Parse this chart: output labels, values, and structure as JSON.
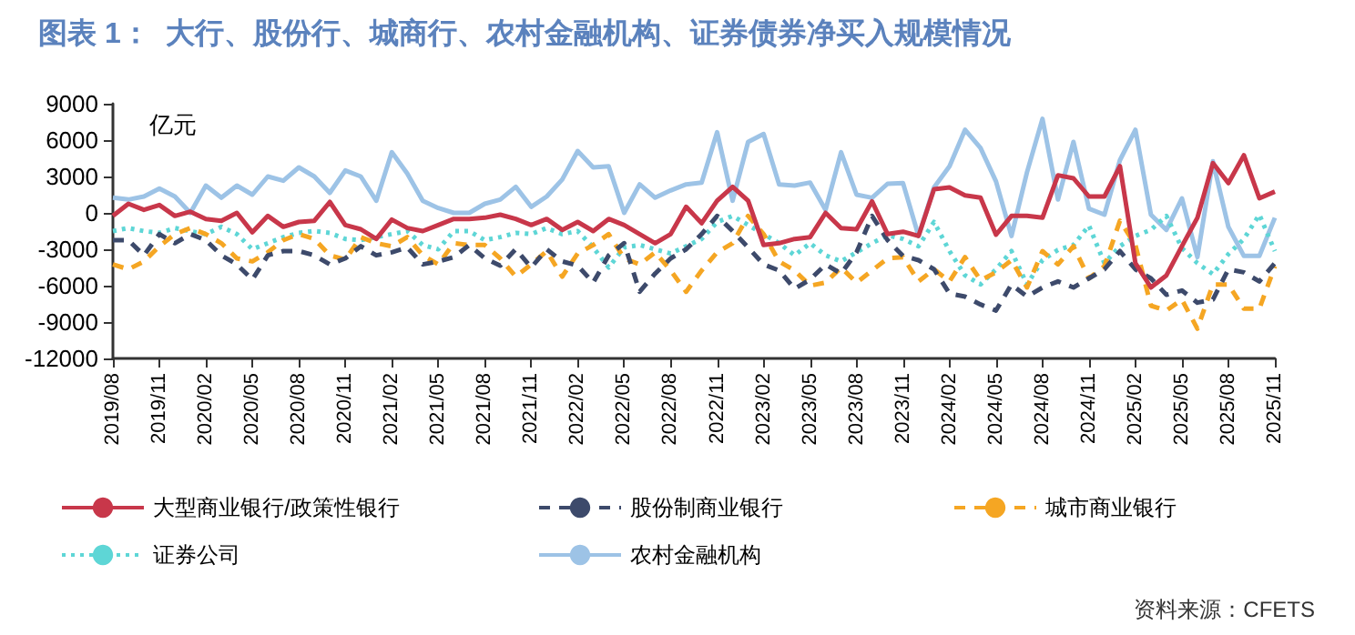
{
  "chart_data": {
    "type": "line",
    "title": "图表 1：  大行、股份行、城商行、农村金融机构、证券债券净买入规模情况",
    "ylabel": "亿元",
    "categories": [
      "2019/08",
      null,
      null,
      "2019/11",
      null,
      null,
      "2020/02",
      null,
      null,
      "2020/05",
      null,
      null,
      "2020/08",
      null,
      null,
      "2020/11",
      null,
      null,
      "2021/02",
      null,
      null,
      "2021/05",
      null,
      null,
      "2021/08",
      null,
      null,
      "2021/11",
      null,
      null,
      "2022/02",
      null,
      null,
      "2022/05",
      null,
      null,
      "2022/08",
      null,
      null,
      "2022/11",
      null,
      null,
      "2023/02",
      null,
      null,
      "2023/05",
      null,
      null,
      "2023/08",
      null,
      null,
      "2023/11",
      null,
      null,
      "2024/02",
      null,
      null,
      "2024/05",
      null,
      null,
      "2024/08",
      null,
      null,
      "2024/11",
      null,
      null,
      "2025/02",
      null,
      null,
      "2025/05",
      null,
      null,
      "2025/08",
      null,
      null,
      "2025/11"
    ],
    "series": [
      {
        "name": "大型商业银行/政策性银行",
        "color": "#c8374a",
        "line_style": "solid",
        "values": [
          -250,
          750,
          250,
          650,
          -250,
          100,
          -500,
          -650,
          0,
          -1600,
          -250,
          -1150,
          -750,
          -650,
          900,
          -1000,
          -1350,
          -2150,
          -550,
          -1250,
          -1500,
          -1000,
          -500,
          -500,
          -400,
          -150,
          -500,
          -1000,
          -500,
          -1400,
          -750,
          -1500,
          -500,
          -1000,
          -1750,
          -2500,
          -1750,
          500,
          -850,
          1000,
          2150,
          1000,
          -2650,
          -2500,
          -2150,
          -2000,
          0,
          -1250,
          -1350,
          950,
          -1750,
          -1550,
          -1900,
          1950,
          2100,
          1450,
          1250,
          -1800,
          -250,
          -250,
          -400,
          3100,
          2850,
          1350,
          1350,
          3850,
          -4150,
          -6150,
          -5150,
          -2750,
          -400,
          4100,
          2450,
          4750,
          1200,
          1750
        ]
      },
      {
        "name": "股份制商业银行",
        "color": "#3d4a6b",
        "line_style": "dashed",
        "values": [
          -2250,
          -2250,
          -3500,
          -1750,
          -2500,
          -1750,
          -2250,
          -3500,
          -4250,
          -5500,
          -3500,
          -3150,
          -3150,
          -3500,
          -4250,
          -3750,
          -2750,
          -3500,
          -3250,
          -2850,
          -4250,
          -4000,
          -3650,
          -2650,
          -3750,
          -4350,
          -3000,
          -4500,
          -3000,
          -4000,
          -4350,
          -5750,
          -3500,
          -2500,
          -6500,
          -5000,
          -3750,
          -3000,
          -1750,
          -250,
          -1500,
          -2850,
          -4250,
          -4750,
          -6250,
          -5500,
          -4250,
          -5000,
          -3250,
          -250,
          -2250,
          -3550,
          -3900,
          -4650,
          -6650,
          -6900,
          -7550,
          -8050,
          -5900,
          -6900,
          -6150,
          -5650,
          -6150,
          -5400,
          -4650,
          -3150,
          -4650,
          -5400,
          -6750,
          -6400,
          -7400,
          -7150,
          -4650,
          -4900,
          -5650,
          -4150
        ]
      },
      {
        "name": "城市商业银行",
        "color": "#f5a623",
        "line_style": "dashed",
        "values": [
          -4250,
          -4650,
          -4000,
          -2750,
          -1750,
          -1250,
          -1750,
          -2500,
          -3750,
          -4000,
          -3250,
          -2250,
          -1750,
          -2150,
          -3500,
          -3850,
          -2000,
          -2500,
          -2750,
          -2000,
          -3500,
          -4250,
          -2500,
          -2650,
          -2650,
          -3750,
          -5250,
          -4250,
          -3150,
          -5250,
          -3350,
          -2650,
          -1750,
          -3750,
          -4250,
          -3250,
          -4750,
          -6500,
          -4750,
          -3250,
          -2500,
          -250,
          -1750,
          -4000,
          -4750,
          -6000,
          -5750,
          -4500,
          -5750,
          -4750,
          -3750,
          -3650,
          -5650,
          -4650,
          -5650,
          -3650,
          -5550,
          -4900,
          -3900,
          -6150,
          -3150,
          -4250,
          -2750,
          -5400,
          -4400,
          -650,
          -2650,
          -7650,
          -8050,
          -7150,
          -9550,
          -5900,
          -5900,
          -7900,
          -7900,
          -4400
        ]
      },
      {
        "name": "证券公司",
        "color": "#5ed6d6",
        "line_style": "dotted",
        "values": [
          -1500,
          -1250,
          -1500,
          -1650,
          -1250,
          -1500,
          -1750,
          -1150,
          -1750,
          -3000,
          -2500,
          -2000,
          -1650,
          -1500,
          -1650,
          -2150,
          -2250,
          -2000,
          -1750,
          -1500,
          -2650,
          -3000,
          -1500,
          -1500,
          -2250,
          -2000,
          -1650,
          -1750,
          -1250,
          -1750,
          -1500,
          -2850,
          -4500,
          -2850,
          -2650,
          -3000,
          -3350,
          -2750,
          -2150,
          -750,
          -250,
          -1000,
          -1750,
          -2500,
          -3500,
          -2500,
          -3500,
          -4000,
          -3250,
          -2500,
          -1850,
          -2150,
          -2750,
          -750,
          -3150,
          -5150,
          -5900,
          -4650,
          -3150,
          -5900,
          -3900,
          -3050,
          -2650,
          -1050,
          -4150,
          -2750,
          -1900,
          -1400,
          -250,
          -2900,
          -4150,
          -5050,
          -3400,
          -2150,
          -150,
          -3150
        ]
      },
      {
        "name": "农村金融机构",
        "color": "#9dc3e6",
        "line_style": "solid",
        "values": [
          1250,
          1100,
          1350,
          2000,
          1350,
          0,
          2250,
          1250,
          2250,
          1500,
          3000,
          2650,
          3750,
          3000,
          1650,
          3500,
          3000,
          1000,
          5000,
          3250,
          1000,
          400,
          0,
          0,
          750,
          1100,
          2150,
          500,
          1350,
          2750,
          5100,
          3750,
          3850,
          0,
          2350,
          1250,
          1850,
          2350,
          2500,
          6650,
          1000,
          5850,
          6500,
          2350,
          2250,
          2500,
          250,
          5000,
          1500,
          1250,
          2400,
          2450,
          -1900,
          2100,
          3850,
          6850,
          5350,
          2600,
          -1900,
          3350,
          7750,
          1100,
          5850,
          350,
          -150,
          4350,
          6850,
          -150,
          -1400,
          1200,
          -3650,
          4250,
          -1150,
          -3550,
          -3550,
          -400
        ]
      }
    ],
    "ylim": [
      -12000,
      9000
    ],
    "yticks": [
      -12000,
      -9000,
      -6000,
      -3000,
      0,
      3000,
      6000,
      9000
    ],
    "grid": false,
    "legend": "bottom",
    "marker": "none",
    "annotations": [
      "资料来源：CFETS"
    ]
  }
}
